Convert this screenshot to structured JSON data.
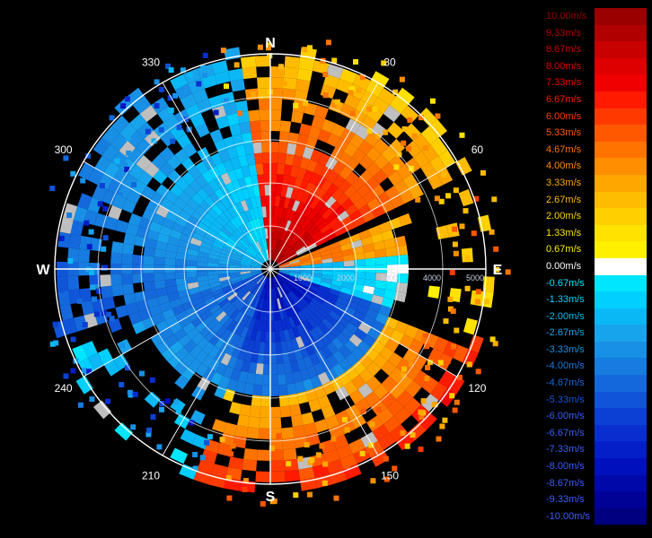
{
  "cardinals": [
    {
      "label": "N",
      "angle": 0
    },
    {
      "label": "E",
      "angle": 90
    },
    {
      "label": "S",
      "angle": 180
    },
    {
      "label": "W",
      "angle": 270
    }
  ],
  "bearing_labels": [
    "30",
    "60",
    "120",
    "150",
    "210",
    "240",
    "300",
    "330"
  ],
  "bearing_angles": [
    30,
    60,
    120,
    150,
    210,
    240,
    300,
    330
  ],
  "range_labels": [
    "1000",
    "2000",
    "3000",
    "4000",
    "5000"
  ],
  "range_values": [
    1000,
    2000,
    3000,
    4000,
    5000
  ],
  "legend": [
    {
      "label": "10.00m/s",
      "color": "#9a0000"
    },
    {
      "label": "9.33m/s",
      "color": "#b00000"
    },
    {
      "label": "8.67m/s",
      "color": "#c80000"
    },
    {
      "label": "8.00m/s",
      "color": "#de0000"
    },
    {
      "label": "7.33m/s",
      "color": "#f00000"
    },
    {
      "label": "6.67m/s",
      "color": "#ff1a00"
    },
    {
      "label": "6.00m/s",
      "color": "#ff3a00"
    },
    {
      "label": "5.33m/s",
      "color": "#ff5800"
    },
    {
      "label": "4.67m/s",
      "color": "#ff7400"
    },
    {
      "label": "4.00m/s",
      "color": "#ff8e00"
    },
    {
      "label": "3.33m/s",
      "color": "#ffa600"
    },
    {
      "label": "2.67m/s",
      "color": "#ffbc00"
    },
    {
      "label": "2.00m/s",
      "color": "#ffd000"
    },
    {
      "label": "1.33m/s",
      "color": "#ffe200"
    },
    {
      "label": "0.67m/s",
      "color": "#fff000"
    },
    {
      "label": "0.00m/s",
      "color": "#ffffff"
    },
    {
      "label": "-0.67m/s",
      "color": "#00e6ff"
    },
    {
      "label": "-1.33m/s",
      "color": "#00cfff"
    },
    {
      "label": "-2.00m/s",
      "color": "#0ab8f5"
    },
    {
      "label": "-2.67m/s",
      "color": "#18a4ec"
    },
    {
      "label": "-3.33m/s",
      "color": "#1890e6"
    },
    {
      "label": "-4.00m/s",
      "color": "#167ce0"
    },
    {
      "label": "-4.67m/s",
      "color": "#1468dc"
    },
    {
      "label": "-5.33m/s",
      "color": "#1054d8"
    },
    {
      "label": "-6.00m/s",
      "color": "#0c40d4"
    },
    {
      "label": "-6.67m/s",
      "color": "#082ed0"
    },
    {
      "label": "-7.33m/s",
      "color": "#041ec8"
    },
    {
      "label": "-8.00m/s",
      "color": "#0010bc"
    },
    {
      "label": "-8.67m/s",
      "color": "#0008aa"
    },
    {
      "label": "-9.33m/s",
      "color": "#000296"
    },
    {
      "label": "-10.00m/s",
      "color": "#000080"
    }
  ],
  "colors": {
    "background": "#000000",
    "rings": "#ffffff",
    "gap": "#bfbfbf"
  }
}
